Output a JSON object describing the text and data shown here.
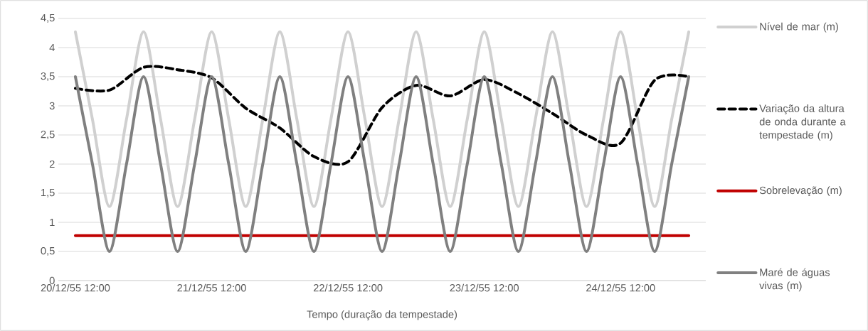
{
  "chart_data": {
    "type": "line",
    "xlabel": "Tempo (duração da tempestade)",
    "x": [
      "1955-12-20T12:00",
      "1955-12-20T15:00",
      "1955-12-20T18:00",
      "1955-12-20T21:00",
      "1955-12-21T00:00",
      "1955-12-21T03:00",
      "1955-12-21T06:00",
      "1955-12-21T09:00",
      "1955-12-21T12:00",
      "1955-12-21T15:00",
      "1955-12-21T18:00",
      "1955-12-21T21:00",
      "1955-12-22T00:00",
      "1955-12-22T03:00",
      "1955-12-22T06:00",
      "1955-12-22T09:00",
      "1955-12-22T12:00",
      "1955-12-22T15:00",
      "1955-12-22T18:00",
      "1955-12-22T21:00",
      "1955-12-23T00:00",
      "1955-12-23T03:00",
      "1955-12-23T06:00",
      "1955-12-23T09:00",
      "1955-12-23T12:00",
      "1955-12-23T15:00",
      "1955-12-23T18:00",
      "1955-12-23T21:00",
      "1955-12-24T00:00",
      "1955-12-24T03:00",
      "1955-12-24T06:00",
      "1955-12-24T09:00",
      "1955-12-24T12:00",
      "1955-12-24T15:00",
      "1955-12-24T18:00",
      "1955-12-24T21:00",
      "1955-12-25T00:00"
    ],
    "series": [
      {
        "name": "Nível de mar (m)",
        "color": "#d0d0d0",
        "line_style": "solid",
        "values": [
          4.27,
          2.77,
          1.27,
          2.77,
          4.27,
          2.77,
          1.27,
          2.77,
          4.27,
          2.77,
          1.27,
          2.77,
          4.27,
          2.77,
          1.27,
          2.77,
          4.27,
          2.77,
          1.27,
          2.77,
          4.27,
          2.77,
          1.27,
          2.77,
          4.27,
          2.77,
          1.27,
          2.77,
          4.27,
          2.77,
          1.27,
          2.77,
          4.27,
          2.77,
          1.27,
          2.77,
          4.27
        ]
      },
      {
        "name": "Variação da altura de onda durante a tempestade (m)",
        "color": "#000000",
        "line_style": "dashed",
        "x": [
          "1955-12-20T12:00",
          "1955-12-20T18:00",
          "1955-12-21T00:00",
          "1955-12-21T06:00",
          "1955-12-21T12:00",
          "1955-12-21T18:00",
          "1955-12-22T00:00",
          "1955-12-22T06:00",
          "1955-12-22T12:00",
          "1955-12-22T18:00",
          "1955-12-23T00:00",
          "1955-12-23T06:00",
          "1955-12-23T12:00",
          "1955-12-23T18:00",
          "1955-12-24T00:00",
          "1955-12-24T06:00",
          "1955-12-24T12:00",
          "1955-12-24T18:00",
          "1955-12-25T00:00"
        ],
        "values": [
          3.3,
          3.27,
          3.66,
          3.62,
          3.48,
          2.96,
          2.62,
          2.13,
          2.04,
          2.97,
          3.35,
          3.17,
          3.45,
          3.21,
          2.87,
          2.5,
          2.36,
          3.44,
          3.5
        ]
      },
      {
        "name": "Sobrelevação (m)",
        "color": "#c00000",
        "line_style": "solid",
        "x": [
          "1955-12-20T12:00",
          "1955-12-25T00:00"
        ],
        "values": [
          0.77,
          0.77
        ]
      },
      {
        "name": "Maré de águas vivas (m)",
        "color": "#808080",
        "line_style": "solid",
        "values": [
          3.5,
          2,
          0.5,
          2,
          3.5,
          2,
          0.5,
          2,
          3.5,
          2,
          0.5,
          2,
          3.5,
          2,
          0.5,
          2,
          3.5,
          2,
          0.5,
          2,
          3.5,
          2,
          0.5,
          2,
          3.5,
          2,
          0.5,
          2,
          3.5,
          2,
          0.5,
          2,
          3.5,
          2,
          0.5,
          2,
          3.5
        ]
      }
    ],
    "xlim": [
      "1955-12-20T09:00",
      "1955-12-25T03:00"
    ],
    "xticks": [
      {
        "value": "1955-12-20T09:00",
        "label": null
      },
      {
        "value": "1955-12-20T12:00",
        "label": "20/12/55 12:00"
      },
      {
        "value": "1955-12-21T03:00",
        "label": null
      },
      {
        "value": "1955-12-21T12:00",
        "label": "21/12/55 12:00"
      },
      {
        "value": "1955-12-21T21:00",
        "label": null
      },
      {
        "value": "1955-12-22T12:00",
        "label": "22/12/55 12:00"
      },
      {
        "value": "1955-12-22T15:00",
        "label": null
      },
      {
        "value": "1955-12-23T09:00",
        "label": null
      },
      {
        "value": "1955-12-23T12:00",
        "label": "23/12/55 12:00"
      },
      {
        "value": "1955-12-24T03:00",
        "label": null
      },
      {
        "value": "1955-12-24T12:00",
        "label": "24/12/55 12:00"
      },
      {
        "value": "1955-12-24T21:00",
        "label": null
      }
    ],
    "ylim": [
      0,
      4.5
    ],
    "yticks": [
      0,
      {
        "value": 0.5,
        "label": "0,5"
      },
      1,
      {
        "value": 1.5,
        "label": "1,5"
      },
      2,
      {
        "value": 2.5,
        "label": "2,5"
      },
      3,
      {
        "value": 3.5,
        "label": "3,5"
      },
      4,
      {
        "value": 4.5,
        "label": "4,5"
      }
    ],
    "grid": "y",
    "legend": "right",
    "marker": "none"
  }
}
